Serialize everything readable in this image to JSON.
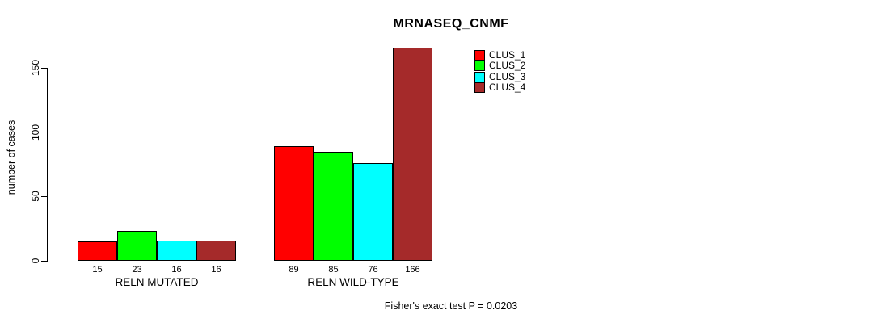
{
  "chart_data": {
    "type": "bar",
    "title": "MRNASEQ_CNMF",
    "xlabel": "",
    "ylabel": "number of cases",
    "categories": [
      "RELN MUTATED",
      "RELN WILD-TYPE"
    ],
    "series": [
      {
        "name": "CLUS_1",
        "color": "#ff0000",
        "values": [
          15,
          89
        ]
      },
      {
        "name": "CLUS_2",
        "color": "#00ff00",
        "values": [
          23,
          85
        ]
      },
      {
        "name": "CLUS_3",
        "color": "#00ffff",
        "values": [
          16,
          76
        ]
      },
      {
        "name": "CLUS_4",
        "color": "#a52a2a",
        "values": [
          16,
          166
        ]
      }
    ],
    "ylim": [
      0,
      150
    ],
    "yticks": [
      0,
      50,
      100,
      150
    ],
    "grid": false,
    "legend_position": "top-right-inside",
    "show_values_below_bars": true,
    "bar_border_color": "#000000",
    "annotation": "Fisher's exact test P = 0.0203"
  }
}
